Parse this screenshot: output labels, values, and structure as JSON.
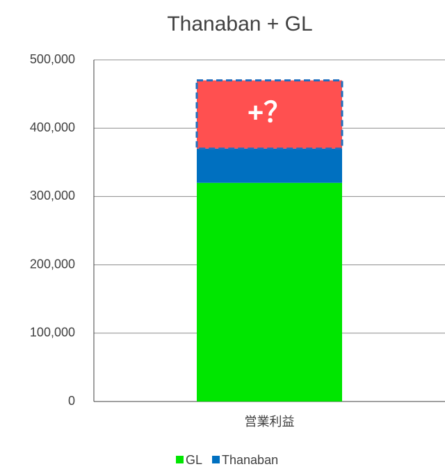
{
  "chart_data": {
    "type": "stacked_bar",
    "title": "Thanaban + GL",
    "categories": [
      "営業利益"
    ],
    "series": [
      {
        "name": "GL",
        "color": "#00e600",
        "values": [
          320000
        ]
      },
      {
        "name": "Thanaban",
        "color": "#0070c0",
        "values": [
          50000
        ]
      }
    ],
    "annotation": {
      "text": "+？",
      "value": 100000,
      "color": "#ff5050",
      "border": "#1f6fbf"
    },
    "ylim": [
      0,
      500000
    ],
    "yticks": [
      0,
      {
        "value": 100000,
        "label": "100,000"
      },
      {
        "value": 200000,
        "label": "200,000"
      },
      {
        "value": 300000,
        "label": "300,000"
      },
      {
        "value": 400000,
        "label": "400,000"
      },
      {
        "value": 500000,
        "label": "500,000"
      }
    ],
    "grid": true,
    "legend": "bottom"
  }
}
